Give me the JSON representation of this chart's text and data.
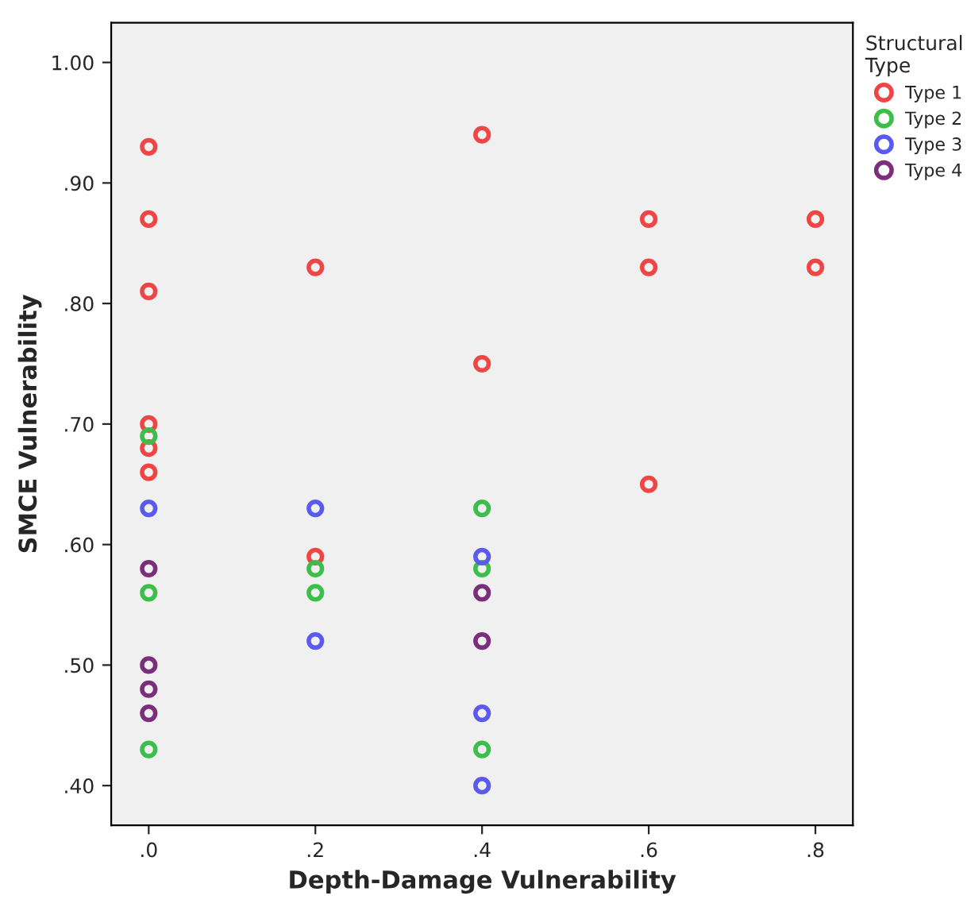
{
  "chart_data": {
    "type": "scatter",
    "xlabel": "Depth-Damage Vulnerability",
    "ylabel": "SMCE Vulnerability",
    "legend_title": "Structural\nType",
    "xlim": [
      -0.045,
      0.845
    ],
    "ylim": [
      0.367,
      1.033
    ],
    "xticks": [
      {
        "value": 0,
        "label": ".0"
      },
      {
        "value": 0.2,
        "label": ".2"
      },
      {
        "value": 0.4,
        "label": ".4"
      },
      {
        "value": 0.6,
        "label": ".6"
      },
      {
        "value": 0.8,
        "label": ".8"
      }
    ],
    "yticks": [
      {
        "value": 0.4,
        "label": ".40"
      },
      {
        "value": 0.5,
        "label": ".50"
      },
      {
        "value": 0.6,
        "label": ".60"
      },
      {
        "value": 0.7,
        "label": ".70"
      },
      {
        "value": 0.8,
        "label": ".80"
      },
      {
        "value": 0.9,
        "label": ".90"
      },
      {
        "value": 1.0,
        "label": "1.00"
      }
    ],
    "grid": false,
    "legend": "right",
    "marker": "circle",
    "series": [
      {
        "name": "Type 1",
        "color": "#f04545",
        "x": [
          0,
          0,
          0,
          0,
          0,
          0,
          0.2,
          0.2,
          0.4,
          0.4,
          0.6,
          0.6,
          0.6,
          0.8,
          0.8
        ],
        "values": [
          0.93,
          0.87,
          0.81,
          0.7,
          0.68,
          0.66,
          0.83,
          0.59,
          0.94,
          0.75,
          0.87,
          0.83,
          0.65,
          0.87,
          0.83
        ]
      },
      {
        "name": "Type 2",
        "color": "#3cbf4a",
        "x": [
          0,
          0,
          0,
          0.2,
          0.2,
          0.4,
          0.4,
          0.4
        ],
        "values": [
          0.69,
          0.56,
          0.43,
          0.58,
          0.56,
          0.63,
          0.58,
          0.43
        ]
      },
      {
        "name": "Type 3",
        "color": "#5a5af0",
        "x": [
          0,
          0.2,
          0.2,
          0.4,
          0.4,
          0.4
        ],
        "values": [
          0.63,
          0.63,
          0.52,
          0.59,
          0.46,
          0.4
        ]
      },
      {
        "name": "Type 4",
        "color": "#7b2f7b",
        "x": [
          0,
          0,
          0,
          0,
          0.4,
          0.4
        ],
        "values": [
          0.58,
          0.5,
          0.48,
          0.46,
          0.56,
          0.52
        ]
      }
    ]
  }
}
